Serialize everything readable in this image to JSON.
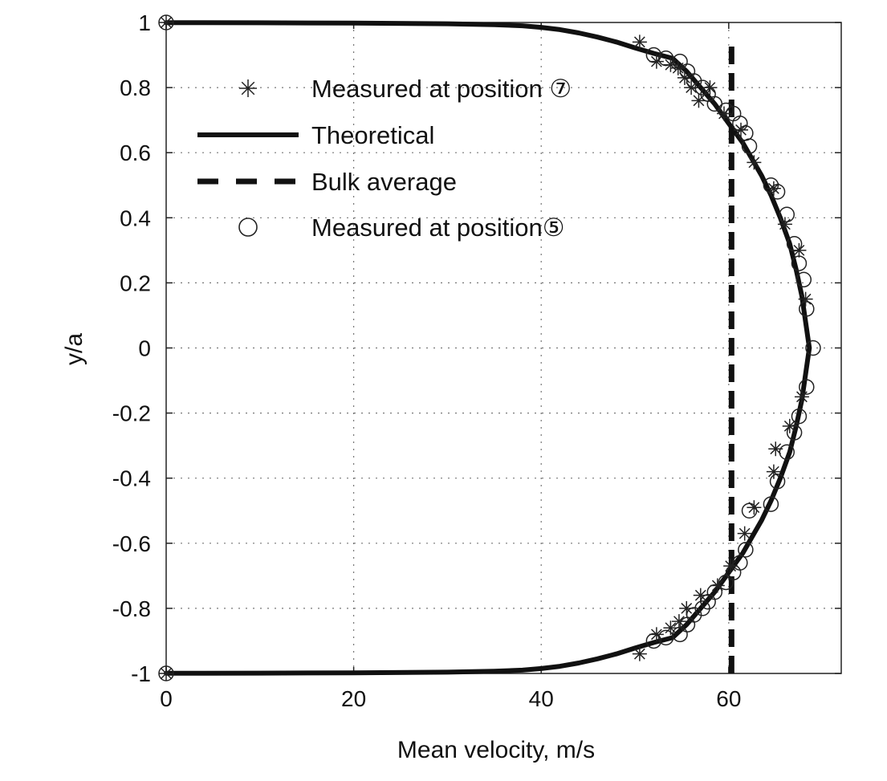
{
  "chart_data": {
    "type": "line",
    "xlabel": "Mean velocity, m/s",
    "ylabel": "y/a",
    "xlim": [
      0,
      72
    ],
    "ylim": [
      -1,
      1
    ],
    "xticks": [
      "0",
      "20",
      "40",
      "60"
    ],
    "yticks": [
      "-1",
      "-0.8",
      "-0.6",
      "-0.4",
      "-0.2",
      "0",
      "0.2",
      "0.4",
      "0.6",
      "0.8",
      "1"
    ],
    "grid": true,
    "legend_position": "top-left",
    "series": [
      {
        "name": "Measured at position ⑦",
        "style": "asterisk",
        "x": [
          0,
          50.5,
          52.3,
          53.8,
          54.6,
          55.3,
          56.0,
          56.8,
          58.0,
          59.5,
          61.3,
          62.7,
          64.8,
          66.0,
          67.5,
          68.2,
          67.8,
          66.5,
          65.0,
          64.8,
          62.7,
          61.7,
          60.2,
          58.8,
          57.0,
          55.5,
          54.7,
          53.8,
          52.3,
          50.5,
          0
        ],
        "y": [
          1,
          0.94,
          0.88,
          0.87,
          0.86,
          0.83,
          0.8,
          0.76,
          0.8,
          0.72,
          0.67,
          0.57,
          0.49,
          0.38,
          0.3,
          0.15,
          -0.15,
          -0.24,
          -0.31,
          -0.38,
          -0.49,
          -0.57,
          -0.67,
          -0.73,
          -0.76,
          -0.8,
          -0.84,
          -0.86,
          -0.88,
          -0.94,
          -1
        ]
      },
      {
        "name": "Theoretical",
        "style": "solid",
        "x": [
          0,
          10,
          20,
          30,
          35,
          38,
          40,
          42,
          44,
          46,
          48,
          50,
          52,
          54,
          55.5,
          57,
          58.5,
          60,
          61.5,
          62.5,
          63.5,
          64.5,
          65.5,
          66.5,
          67.2,
          67.8,
          68.2,
          68.5,
          68.6,
          68.5,
          68.2,
          67.8,
          67.2,
          66.5,
          65.5,
          64.5,
          63.5,
          62.5,
          61.5,
          60,
          58.5,
          57,
          55.5,
          54,
          52,
          50,
          48,
          46,
          44,
          42,
          40,
          38,
          35,
          30,
          20,
          10,
          0
        ],
        "y": [
          0.9995,
          0.999,
          0.998,
          0.996,
          0.993,
          0.99,
          0.985,
          0.978,
          0.968,
          0.955,
          0.94,
          0.922,
          0.905,
          0.89,
          0.85,
          0.8,
          0.75,
          0.69,
          0.63,
          0.58,
          0.53,
          0.47,
          0.4,
          0.32,
          0.24,
          0.16,
          0.08,
          0.02,
          0,
          -0.02,
          -0.08,
          -0.16,
          -0.24,
          -0.32,
          -0.4,
          -0.47,
          -0.53,
          -0.58,
          -0.63,
          -0.69,
          -0.75,
          -0.8,
          -0.85,
          -0.89,
          -0.905,
          -0.922,
          -0.94,
          -0.955,
          -0.968,
          -0.978,
          -0.985,
          -0.99,
          -0.993,
          -0.996,
          -0.998,
          -0.999,
          -0.9995
        ]
      },
      {
        "name": "Bulk average",
        "style": "dashed",
        "x": [
          60.3,
          60.3
        ],
        "y": [
          -1,
          0.95
        ]
      },
      {
        "name": "Measured at position⑤",
        "style": "circle",
        "x": [
          0,
          52.0,
          53.3,
          54.8,
          55.6,
          56.3,
          57.2,
          57.8,
          58.5,
          59.7,
          60.5,
          61.2,
          61.8,
          62.2,
          64.5,
          65.2,
          66.2,
          67.0,
          67.5,
          68.0,
          68.3,
          69.0,
          68.3,
          67.5,
          67.0,
          66.2,
          65.2,
          64.5,
          62.2,
          61.8,
          61.2,
          60.5,
          59.7,
          58.5,
          57.8,
          57.2,
          56.3,
          55.6,
          54.8,
          53.3,
          52.0,
          0
        ],
        "y": [
          1,
          0.9,
          0.89,
          0.88,
          0.85,
          0.82,
          0.8,
          0.78,
          0.75,
          0.73,
          0.72,
          0.69,
          0.66,
          0.62,
          0.5,
          0.48,
          0.41,
          0.32,
          0.26,
          0.21,
          0.12,
          0,
          -0.12,
          -0.21,
          -0.26,
          -0.32,
          -0.41,
          -0.48,
          -0.5,
          -0.62,
          -0.66,
          -0.69,
          -0.72,
          -0.75,
          -0.78,
          -0.8,
          -0.82,
          -0.85,
          -0.88,
          -0.89,
          -0.9,
          -1
        ]
      }
    ]
  }
}
